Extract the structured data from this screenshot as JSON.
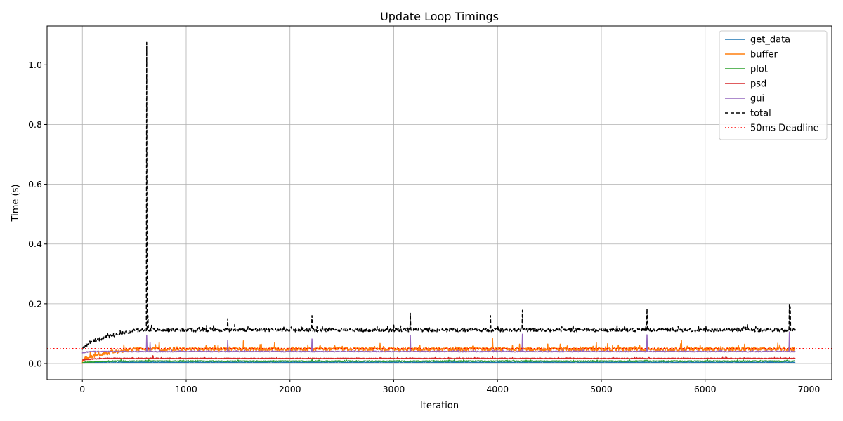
{
  "chart_data": {
    "type": "line",
    "title": "Update Loop Timings",
    "xlabel": "Iteration",
    "ylabel": "Time (s)",
    "xlim": [
      -340,
      7220
    ],
    "ylim": [
      -0.054,
      1.13
    ],
    "xticks": [
      0,
      1000,
      2000,
      3000,
      4000,
      5000,
      6000,
      7000
    ],
    "xtick_labels": [
      "0",
      "1000",
      "2000",
      "3000",
      "4000",
      "5000",
      "6000",
      "7000"
    ],
    "yticks": [
      0.0,
      0.2,
      0.4,
      0.6,
      0.8,
      1.0
    ],
    "ytick_labels": [
      "0.0",
      "0.2",
      "0.4",
      "0.6",
      "0.8",
      "1.0"
    ],
    "grid": true,
    "legend_position": "top-right",
    "n_iterations": 6870,
    "series": [
      {
        "name": "get_data",
        "color": "#1f77b4",
        "style": "solid",
        "baseline": 0.004,
        "noise": 0.0015,
        "rise": {
          "start": 0.002,
          "end": 0.004,
          "length": 200
        }
      },
      {
        "name": "buffer",
        "color": "#ff7f0e",
        "style": "solid",
        "baseline": 0.048,
        "noise": 0.006,
        "rise": {
          "start": 0.004,
          "end": 0.048,
          "length": 500
        },
        "spikes": [
          {
            "x": 740,
            "y": 0.072
          },
          {
            "x": 1550,
            "y": 0.076
          },
          {
            "x": 1850,
            "y": 0.07
          },
          {
            "x": 3950,
            "y": 0.085
          },
          {
            "x": 4950,
            "y": 0.07
          },
          {
            "x": 5770,
            "y": 0.078
          },
          {
            "x": 6700,
            "y": 0.068
          }
        ]
      },
      {
        "name": "plot",
        "color": "#2ca02c",
        "style": "solid",
        "baseline": 0.008,
        "noise": 0.0015,
        "rise": {
          "start": 0.002,
          "end": 0.008,
          "length": 300
        }
      },
      {
        "name": "psd",
        "color": "#d62728",
        "style": "solid",
        "baseline": 0.017,
        "noise": 0.0012,
        "rise": {
          "start": 0.01,
          "end": 0.017,
          "length": 200
        },
        "spikes": [
          {
            "x": 680,
            "y": 0.026
          },
          {
            "x": 3950,
            "y": 0.024
          },
          {
            "x": 6200,
            "y": 0.022
          }
        ]
      },
      {
        "name": "gui",
        "color": "#9467bd",
        "style": "solid",
        "baseline": 0.04,
        "noise": 0.0015,
        "rise": {
          "start": 0.035,
          "end": 0.04,
          "length": 100
        },
        "spikes": [
          {
            "x": 620,
            "y": 0.095
          },
          {
            "x": 650,
            "y": 0.07
          },
          {
            "x": 1400,
            "y": 0.078
          },
          {
            "x": 2210,
            "y": 0.082
          },
          {
            "x": 3160,
            "y": 0.095
          },
          {
            "x": 4240,
            "y": 0.098
          },
          {
            "x": 5440,
            "y": 0.096
          },
          {
            "x": 6810,
            "y": 0.105
          }
        ]
      },
      {
        "name": "total",
        "color": "#000000",
        "style": "dashed",
        "baseline": 0.112,
        "noise": 0.006,
        "rise": {
          "start": 0.045,
          "end": 0.112,
          "length": 550
        },
        "spikes": [
          {
            "x": 620,
            "y": 1.075
          },
          {
            "x": 630,
            "y": 0.16
          },
          {
            "x": 1400,
            "y": 0.15
          },
          {
            "x": 2210,
            "y": 0.16
          },
          {
            "x": 3160,
            "y": 0.168
          },
          {
            "x": 3930,
            "y": 0.16
          },
          {
            "x": 4240,
            "y": 0.178
          },
          {
            "x": 5440,
            "y": 0.183
          },
          {
            "x": 6810,
            "y": 0.2
          },
          {
            "x": 6820,
            "y": 0.19
          }
        ]
      },
      {
        "name": "50ms Deadline",
        "color": "#ff0000",
        "style": "dotted",
        "hline": 0.05
      }
    ]
  }
}
